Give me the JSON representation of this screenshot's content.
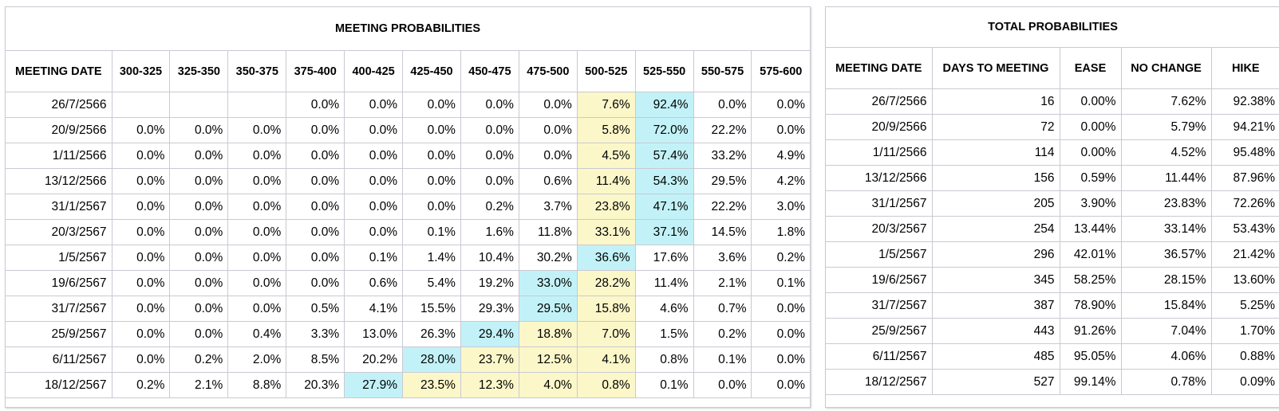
{
  "meeting_probabilities": {
    "title": "MEETING PROBABILITIES",
    "columns": [
      "MEETING DATE",
      "300-325",
      "325-350",
      "350-375",
      "375-400",
      "400-425",
      "425-450",
      "450-475",
      "475-500",
      "500-525",
      "525-550",
      "550-575",
      "575-600"
    ],
    "rows": [
      {
        "date": "26/7/2566",
        "values": [
          "",
          "",
          "",
          "0.0%",
          "0.0%",
          "0.0%",
          "0.0%",
          "0.0%",
          "7.6%",
          "92.4%",
          "0.0%",
          "0.0%"
        ],
        "cyan": 9,
        "yellow": [
          8
        ]
      },
      {
        "date": "20/9/2566",
        "values": [
          "0.0%",
          "0.0%",
          "0.0%",
          "0.0%",
          "0.0%",
          "0.0%",
          "0.0%",
          "0.0%",
          "5.8%",
          "72.0%",
          "22.2%",
          "0.0%"
        ],
        "cyan": 9,
        "yellow": [
          8
        ]
      },
      {
        "date": "1/11/2566",
        "values": [
          "0.0%",
          "0.0%",
          "0.0%",
          "0.0%",
          "0.0%",
          "0.0%",
          "0.0%",
          "0.0%",
          "4.5%",
          "57.4%",
          "33.2%",
          "4.9%"
        ],
        "cyan": 9,
        "yellow": [
          8
        ]
      },
      {
        "date": "13/12/2566",
        "values": [
          "0.0%",
          "0.0%",
          "0.0%",
          "0.0%",
          "0.0%",
          "0.0%",
          "0.0%",
          "0.6%",
          "11.4%",
          "54.3%",
          "29.5%",
          "4.2%"
        ],
        "cyan": 9,
        "yellow": [
          8
        ]
      },
      {
        "date": "31/1/2567",
        "values": [
          "0.0%",
          "0.0%",
          "0.0%",
          "0.0%",
          "0.0%",
          "0.0%",
          "0.2%",
          "3.7%",
          "23.8%",
          "47.1%",
          "22.2%",
          "3.0%"
        ],
        "cyan": 9,
        "yellow": [
          8
        ]
      },
      {
        "date": "20/3/2567",
        "values": [
          "0.0%",
          "0.0%",
          "0.0%",
          "0.0%",
          "0.0%",
          "0.1%",
          "1.6%",
          "11.8%",
          "33.1%",
          "37.1%",
          "14.5%",
          "1.8%"
        ],
        "cyan": 9,
        "yellow": [
          8
        ]
      },
      {
        "date": "1/5/2567",
        "values": [
          "0.0%",
          "0.0%",
          "0.0%",
          "0.0%",
          "0.1%",
          "1.4%",
          "10.4%",
          "30.2%",
          "36.6%",
          "17.6%",
          "3.6%",
          "0.2%"
        ],
        "cyan": 8,
        "yellow": []
      },
      {
        "date": "19/6/2567",
        "values": [
          "0.0%",
          "0.0%",
          "0.0%",
          "0.0%",
          "0.6%",
          "5.4%",
          "19.2%",
          "33.0%",
          "28.2%",
          "11.4%",
          "2.1%",
          "0.1%"
        ],
        "cyan": 7,
        "yellow": [
          8
        ]
      },
      {
        "date": "31/7/2567",
        "values": [
          "0.0%",
          "0.0%",
          "0.0%",
          "0.5%",
          "4.1%",
          "15.5%",
          "29.3%",
          "29.5%",
          "15.8%",
          "4.6%",
          "0.7%",
          "0.0%"
        ],
        "cyan": 7,
        "yellow": [
          8
        ]
      },
      {
        "date": "25/9/2567",
        "values": [
          "0.0%",
          "0.0%",
          "0.4%",
          "3.3%",
          "13.0%",
          "26.3%",
          "29.4%",
          "18.8%",
          "7.0%",
          "1.5%",
          "0.2%",
          "0.0%"
        ],
        "cyan": 6,
        "yellow": [
          7,
          8
        ]
      },
      {
        "date": "6/11/2567",
        "values": [
          "0.0%",
          "0.2%",
          "2.0%",
          "8.5%",
          "20.2%",
          "28.0%",
          "23.7%",
          "12.5%",
          "4.1%",
          "0.8%",
          "0.1%",
          "0.0%"
        ],
        "cyan": 5,
        "yellow": [
          6,
          7,
          8
        ]
      },
      {
        "date": "18/12/2567",
        "values": [
          "0.2%",
          "2.1%",
          "8.8%",
          "20.3%",
          "27.9%",
          "23.5%",
          "12.3%",
          "4.0%",
          "0.8%",
          "0.1%",
          "0.0%",
          "0.0%"
        ],
        "cyan": 4,
        "yellow": [
          5,
          6,
          7,
          8
        ]
      }
    ]
  },
  "total_probabilities": {
    "title": "TOTAL PROBABILITIES",
    "columns": [
      "MEETING DATE",
      "DAYS TO MEETING",
      "EASE",
      "NO CHANGE",
      "HIKE"
    ],
    "rows": [
      [
        "26/7/2566",
        "16",
        "0.00%",
        "7.62%",
        "92.38%"
      ],
      [
        "20/9/2566",
        "72",
        "0.00%",
        "5.79%",
        "94.21%"
      ],
      [
        "1/11/2566",
        "114",
        "0.00%",
        "4.52%",
        "95.48%"
      ],
      [
        "13/12/2566",
        "156",
        "0.59%",
        "11.44%",
        "87.96%"
      ],
      [
        "31/1/2567",
        "205",
        "3.90%",
        "23.83%",
        "72.26%"
      ],
      [
        "20/3/2567",
        "254",
        "13.44%",
        "33.14%",
        "53.43%"
      ],
      [
        "1/5/2567",
        "296",
        "42.01%",
        "36.57%",
        "21.42%"
      ],
      [
        "19/6/2567",
        "345",
        "58.25%",
        "28.15%",
        "13.60%"
      ],
      [
        "31/7/2567",
        "387",
        "78.90%",
        "15.84%",
        "5.25%"
      ],
      [
        "25/9/2567",
        "443",
        "91.26%",
        "7.04%",
        "1.70%"
      ],
      [
        "6/11/2567",
        "485",
        "95.05%",
        "4.06%",
        "0.88%"
      ],
      [
        "18/12/2567",
        "527",
        "99.14%",
        "0.78%",
        "0.09%"
      ]
    ]
  },
  "colors": {
    "highlight_cyan": "#c2f2f7",
    "highlight_yellow": "#fbf7c9",
    "grid_border": "#c9c9d3"
  }
}
